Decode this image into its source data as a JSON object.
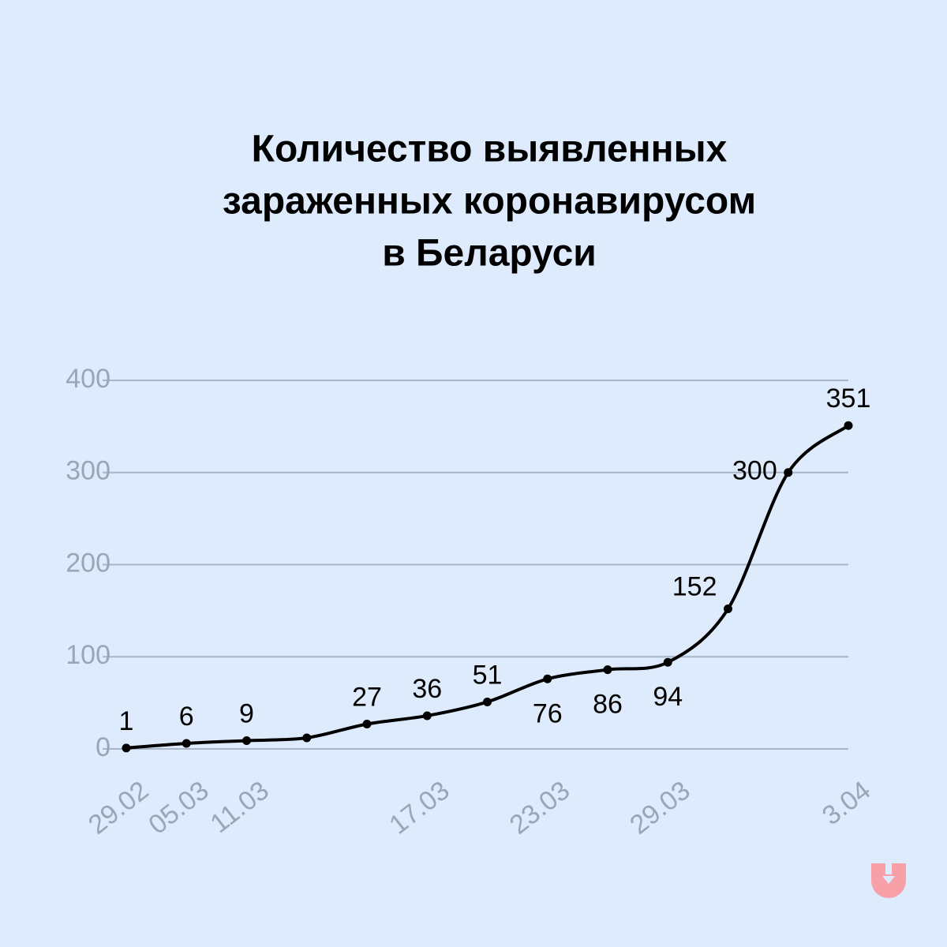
{
  "chart_data": {
    "type": "line",
    "title": [
      "Количество выявленных",
      "зараженных коронавирусом",
      "в Беларуси"
    ],
    "categories": [
      "29.02",
      "05.03",
      "11.03",
      null,
      null,
      "17.03",
      null,
      "23.03",
      null,
      "29.03",
      null,
      null,
      "3.04"
    ],
    "series": [
      {
        "color": "#000000",
        "values": [
          1,
          6,
          9,
          12,
          27,
          36,
          51,
          76,
          86,
          94,
          152,
          300,
          351
        ]
      }
    ],
    "labeled_points": [
      0,
      1,
      2,
      4,
      5,
      6,
      7,
      8,
      9,
      10,
      11,
      12
    ],
    "ylim": [
      0,
      400
    ],
    "yticks": [
      0,
      100,
      200,
      300,
      400
    ],
    "grid": true
  }
}
